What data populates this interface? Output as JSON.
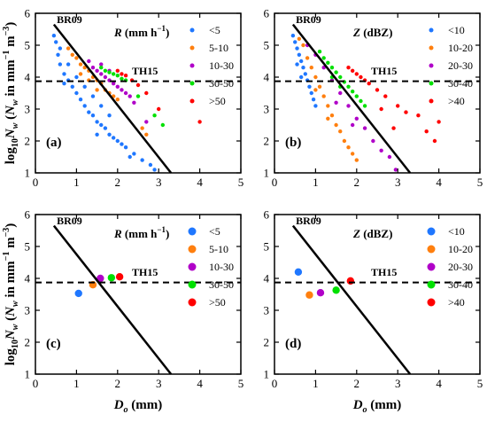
{
  "figure": {
    "ylabel_parts": {
      "pre": "log",
      "sub10": "10",
      "n": "N",
      "nsub": "w",
      "paren": " (",
      "n2": "N",
      "nsub2": "w",
      "unit_a": " in mm",
      "sup1": "−1",
      "unit_b": " m",
      "sup3": "−3",
      "close": ")"
    },
    "xlabel_parts": {
      "d": "D",
      "sub": "o",
      "unit": " (mm)"
    }
  },
  "legend_colors": [
    "#1f77ff",
    "#ff7f0e",
    "#b000c8",
    "#00e000",
    "#ff0000"
  ],
  "chart_data": [
    {
      "type": "scatter",
      "panel": "(a)",
      "xlim": [
        0,
        5
      ],
      "ylim": [
        1,
        6
      ],
      "x_ticks": [
        "0",
        "1",
        "2",
        "3",
        "4",
        "5"
      ],
      "y_ticks": [
        "1",
        "2",
        "3",
        "4",
        "5",
        "6"
      ],
      "legend_title": {
        "var": "R",
        "unit": " (mm h",
        "sup": "−1",
        "close": ")"
      },
      "legend": [
        "<5",
        "5-10",
        "10-30",
        "30-50",
        ">50"
      ],
      "lines": {
        "br09": {
          "label": "BR09",
          "x": [
            0.45,
            3.3
          ],
          "y": [
            5.65,
            1.0
          ]
        },
        "th15": {
          "label": "TH15",
          "y": 3.87
        }
      },
      "series": [
        {
          "name": "<5",
          "points": [
            [
              0.45,
              5.3
            ],
            [
              0.5,
              5.1
            ],
            [
              0.55,
              4.7
            ],
            [
              0.6,
              4.4
            ],
            [
              0.7,
              4.1
            ],
            [
              0.8,
              3.9
            ],
            [
              0.9,
              3.7
            ],
            [
              1.0,
              3.5
            ],
            [
              1.1,
              3.3
            ],
            [
              1.2,
              3.1
            ],
            [
              1.3,
              2.9
            ],
            [
              1.4,
              2.8
            ],
            [
              1.5,
              2.6
            ],
            [
              1.6,
              2.5
            ],
            [
              1.7,
              2.4
            ],
            [
              1.8,
              2.2
            ],
            [
              1.9,
              2.1
            ],
            [
              2.0,
              2.0
            ],
            [
              2.1,
              1.9
            ],
            [
              2.2,
              1.8
            ],
            [
              2.4,
              1.6
            ],
            [
              2.6,
              1.4
            ],
            [
              2.8,
              1.25
            ],
            [
              0.6,
              4.9
            ],
            [
              0.8,
              4.4
            ],
            [
              1.0,
              4.0
            ],
            [
              1.2,
              3.7
            ],
            [
              1.4,
              3.4
            ],
            [
              1.6,
              3.1
            ],
            [
              1.8,
              2.8
            ],
            [
              0.7,
              3.8
            ],
            [
              1.5,
              2.2
            ],
            [
              2.3,
              1.5
            ],
            [
              2.9,
              1.1
            ]
          ]
        },
        {
          "name": "5-10",
          "points": [
            [
              0.8,
              4.9
            ],
            [
              0.9,
              4.7
            ],
            [
              1.0,
              4.6
            ],
            [
              1.1,
              4.4
            ],
            [
              1.2,
              4.3
            ],
            [
              1.3,
              4.2
            ],
            [
              1.4,
              4.0
            ],
            [
              1.5,
              3.9
            ],
            [
              1.6,
              3.8
            ],
            [
              1.7,
              3.6
            ],
            [
              1.8,
              3.5
            ],
            [
              1.9,
              3.4
            ],
            [
              2.0,
              3.3
            ],
            [
              1.1,
              4.1
            ],
            [
              1.3,
              3.9
            ],
            [
              1.5,
              3.6
            ],
            [
              2.6,
              2.4
            ],
            [
              2.7,
              2.2
            ]
          ]
        },
        {
          "name": "10-30",
          "points": [
            [
              1.3,
              4.5
            ],
            [
              1.4,
              4.3
            ],
            [
              1.5,
              4.2
            ],
            [
              1.6,
              4.1
            ],
            [
              1.7,
              4.0
            ],
            [
              1.8,
              3.9
            ],
            [
              1.9,
              3.8
            ],
            [
              2.0,
              3.7
            ],
            [
              2.1,
              3.6
            ],
            [
              2.2,
              3.5
            ],
            [
              2.3,
              3.4
            ],
            [
              1.6,
              4.4
            ],
            [
              1.8,
              4.2
            ],
            [
              2.4,
              3.2
            ],
            [
              2.7,
              2.6
            ]
          ]
        },
        {
          "name": "30-50",
          "points": [
            [
              1.6,
              4.3
            ],
            [
              1.7,
              4.2
            ],
            [
              1.8,
              4.15
            ],
            [
              1.9,
              4.1
            ],
            [
              2.0,
              4.05
            ],
            [
              2.1,
              3.95
            ],
            [
              2.2,
              3.9
            ],
            [
              2.5,
              3.4
            ],
            [
              2.9,
              2.8
            ],
            [
              3.1,
              2.5
            ]
          ]
        },
        {
          "name": ">50",
          "points": [
            [
              2.0,
              4.2
            ],
            [
              2.1,
              4.1
            ],
            [
              2.2,
              4.05
            ],
            [
              2.35,
              3.9
            ],
            [
              2.5,
              3.75
            ],
            [
              2.7,
              3.5
            ],
            [
              3.0,
              3.0
            ],
            [
              4.0,
              2.6
            ]
          ]
        }
      ]
    },
    {
      "type": "scatter",
      "panel": "(b)",
      "xlim": [
        0,
        5
      ],
      "ylim": [
        1,
        6
      ],
      "x_ticks": [
        "0",
        "1",
        "2",
        "3",
        "4",
        "5"
      ],
      "y_ticks": [
        "1",
        "2",
        "3",
        "4",
        "5",
        "6"
      ],
      "legend_title": {
        "var": "Z",
        "unit": " (dBZ)",
        "sup": "",
        "close": ""
      },
      "legend": [
        "<10",
        "10-20",
        "20-30",
        "30-40",
        ">40"
      ],
      "lines": {
        "br09": {
          "label": "BR09",
          "x": [
            0.45,
            3.3
          ],
          "y": [
            5.65,
            1.0
          ]
        },
        "th15": {
          "label": "TH15",
          "y": 3.87
        }
      },
      "series": [
        {
          "name": "<10",
          "points": [
            [
              0.45,
              5.3
            ],
            [
              0.5,
              5.1
            ],
            [
              0.55,
              4.9
            ],
            [
              0.6,
              4.7
            ],
            [
              0.65,
              4.5
            ],
            [
              0.7,
              4.3
            ],
            [
              0.75,
              4.1
            ],
            [
              0.8,
              3.9
            ],
            [
              0.85,
              3.7
            ],
            [
              0.9,
              3.5
            ],
            [
              0.95,
              3.3
            ],
            [
              1.0,
              3.1
            ],
            [
              0.55,
              4.4
            ],
            [
              0.65,
              4.0
            ]
          ]
        },
        {
          "name": "10-20",
          "points": [
            [
              0.6,
              5.2
            ],
            [
              0.7,
              5.0
            ],
            [
              0.8,
              4.6
            ],
            [
              0.9,
              4.3
            ],
            [
              1.0,
              4.0
            ],
            [
              1.1,
              3.7
            ],
            [
              1.2,
              3.4
            ],
            [
              1.3,
              3.1
            ],
            [
              1.4,
              2.8
            ],
            [
              1.5,
              2.5
            ],
            [
              1.6,
              2.3
            ],
            [
              1.7,
              2.0
            ],
            [
              1.8,
              1.8
            ],
            [
              1.9,
              1.6
            ],
            [
              2.0,
              1.4
            ],
            [
              1.0,
              3.6
            ],
            [
              1.3,
              2.7
            ]
          ]
        },
        {
          "name": "20-30",
          "points": [
            [
              0.8,
              5.0
            ],
            [
              1.0,
              4.7
            ],
            [
              1.2,
              4.3
            ],
            [
              1.4,
              3.9
            ],
            [
              1.6,
              3.5
            ],
            [
              1.8,
              3.1
            ],
            [
              2.0,
              2.7
            ],
            [
              2.2,
              2.4
            ],
            [
              2.4,
              2.0
            ],
            [
              2.6,
              1.7
            ],
            [
              2.8,
              1.5
            ],
            [
              2.95,
              1.1
            ],
            [
              1.5,
              3.2
            ],
            [
              1.9,
              2.5
            ]
          ]
        },
        {
          "name": "30-40",
          "points": [
            [
              1.1,
              4.8
            ],
            [
              1.2,
              4.6
            ],
            [
              1.3,
              4.45
            ],
            [
              1.4,
              4.3
            ],
            [
              1.5,
              4.15
            ],
            [
              1.6,
              4.0
            ],
            [
              1.7,
              3.85
            ],
            [
              1.8,
              3.7
            ],
            [
              1.9,
              3.55
            ],
            [
              2.0,
              3.4
            ],
            [
              2.1,
              3.25
            ],
            [
              2.2,
              3.1
            ],
            [
              1.4,
              4.0
            ],
            [
              1.6,
              3.7
            ]
          ]
        },
        {
          "name": ">40",
          "points": [
            [
              1.8,
              4.3
            ],
            [
              1.9,
              4.2
            ],
            [
              2.0,
              4.1
            ],
            [
              2.1,
              4.0
            ],
            [
              2.2,
              3.9
            ],
            [
              2.3,
              3.8
            ],
            [
              2.5,
              3.6
            ],
            [
              2.7,
              3.4
            ],
            [
              3.0,
              3.1
            ],
            [
              3.2,
              2.9
            ],
            [
              3.5,
              2.8
            ],
            [
              3.7,
              2.3
            ],
            [
              3.9,
              2.0
            ],
            [
              4.0,
              2.6
            ],
            [
              2.6,
              3.0
            ],
            [
              2.9,
              2.4
            ]
          ]
        }
      ]
    },
    {
      "type": "scatter",
      "panel": "(c)",
      "xlim": [
        0,
        5
      ],
      "ylim": [
        1,
        6
      ],
      "x_ticks": [
        "0",
        "1",
        "2",
        "3",
        "4",
        "5"
      ],
      "y_ticks": [
        "1",
        "2",
        "3",
        "4",
        "5",
        "6"
      ],
      "legend_title": {
        "var": "R",
        "unit": " (mm h",
        "sup": "−1",
        "close": ")"
      },
      "legend": [
        "<5",
        "5-10",
        "10-30",
        "30-50",
        ">50"
      ],
      "lines": {
        "br09": {
          "label": "BR09",
          "x": [
            0.45,
            3.3
          ],
          "y": [
            5.65,
            1.0
          ]
        },
        "th15": {
          "label": "TH15",
          "y": 3.87
        }
      },
      "series": [
        {
          "name": "<5",
          "points": [
            [
              1.05,
              3.53
            ]
          ]
        },
        {
          "name": "5-10",
          "points": [
            [
              1.4,
              3.8
            ]
          ]
        },
        {
          "name": "10-30",
          "points": [
            [
              1.58,
              4.0
            ]
          ]
        },
        {
          "name": "30-50",
          "points": [
            [
              1.85,
              4.02
            ]
          ]
        },
        {
          "name": ">50",
          "points": [
            [
              2.05,
              4.05
            ]
          ]
        }
      ]
    },
    {
      "type": "scatter",
      "panel": "(d)",
      "xlim": [
        0,
        5
      ],
      "ylim": [
        1,
        6
      ],
      "x_ticks": [
        "0",
        "1",
        "2",
        "3",
        "4",
        "5"
      ],
      "y_ticks": [
        "1",
        "2",
        "3",
        "4",
        "5",
        "6"
      ],
      "legend_title": {
        "var": "Z",
        "unit": " (dBZ)",
        "sup": "",
        "close": ""
      },
      "legend": [
        "<10",
        "10-20",
        "20-30",
        "30-40",
        ">40"
      ],
      "lines": {
        "br09": {
          "label": "BR09",
          "x": [
            0.45,
            3.3
          ],
          "y": [
            5.65,
            1.0
          ]
        },
        "th15": {
          "label": "TH15",
          "y": 3.87
        }
      },
      "series": [
        {
          "name": "<10",
          "points": [
            [
              0.58,
              4.2
            ]
          ]
        },
        {
          "name": "10-20",
          "points": [
            [
              0.85,
              3.48
            ]
          ]
        },
        {
          "name": "20-30",
          "points": [
            [
              1.12,
              3.55
            ]
          ]
        },
        {
          "name": "30-40",
          "points": [
            [
              1.5,
              3.63
            ]
          ]
        },
        {
          "name": ">40",
          "points": [
            [
              1.85,
              3.92
            ]
          ]
        }
      ]
    }
  ]
}
